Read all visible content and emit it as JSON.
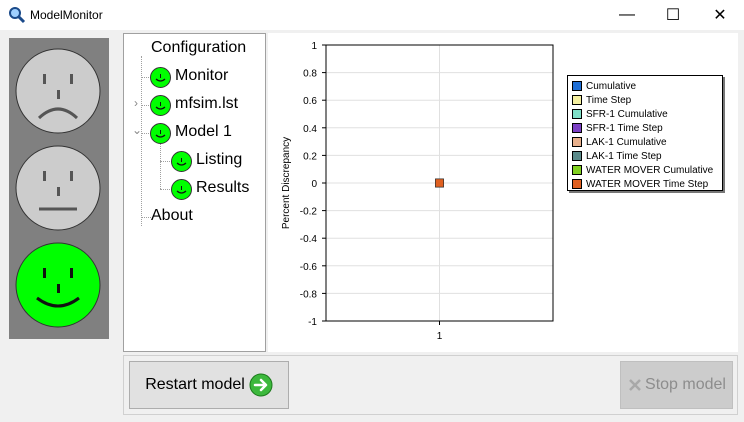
{
  "window": {
    "title": "ModelMonitor",
    "minimize": "—",
    "maximize": "☐",
    "close": "✕"
  },
  "status_faces": [
    {
      "state": "sad",
      "active": false
    },
    {
      "state": "neutral",
      "active": false
    },
    {
      "state": "happy",
      "active": true
    }
  ],
  "tree": {
    "configuration": "Configuration",
    "monitor": "Monitor",
    "mfsim": "mfsim.lst",
    "model1": "Model 1",
    "listing": "Listing",
    "results": "Results",
    "about": "About"
  },
  "chart_data": {
    "type": "bar",
    "categories": [
      "1"
    ],
    "ylabel": "Percent Discrepancy",
    "ylim": [
      -1,
      1
    ],
    "yticks": [
      "1",
      "0.8",
      "0.6",
      "0.4",
      "0.2",
      "0",
      "-0.2",
      "-0.4",
      "-0.6",
      "-0.8",
      "-1"
    ],
    "grid": true,
    "legend_position": "right",
    "series": [
      {
        "name": "Cumulative",
        "color": "#1f6fd6",
        "values": [
          0
        ]
      },
      {
        "name": "Time Step",
        "color": "#f5f0a0",
        "values": [
          0
        ]
      },
      {
        "name": "SFR-1 Cumulative",
        "color": "#7fe0c8",
        "values": [
          0
        ]
      },
      {
        "name": "SFR-1 Time Step",
        "color": "#7b3fc4",
        "values": [
          0
        ]
      },
      {
        "name": "LAK-1 Cumulative",
        "color": "#e8b08c",
        "values": [
          0
        ]
      },
      {
        "name": "LAK-1 Time Step",
        "color": "#5a8a8a",
        "values": [
          0
        ]
      },
      {
        "name": "WATER MOVER Cumulative",
        "color": "#80d020",
        "values": [
          0
        ]
      },
      {
        "name": "WATER MOVER Time Step",
        "color": "#e06020",
        "values": [
          0
        ]
      }
    ]
  },
  "buttons": {
    "restart": "Restart model",
    "stop": "Stop model"
  },
  "colors": {
    "face_green": "#00ff00",
    "face_grey": "#cccccc",
    "panel_grey": "#808080"
  }
}
